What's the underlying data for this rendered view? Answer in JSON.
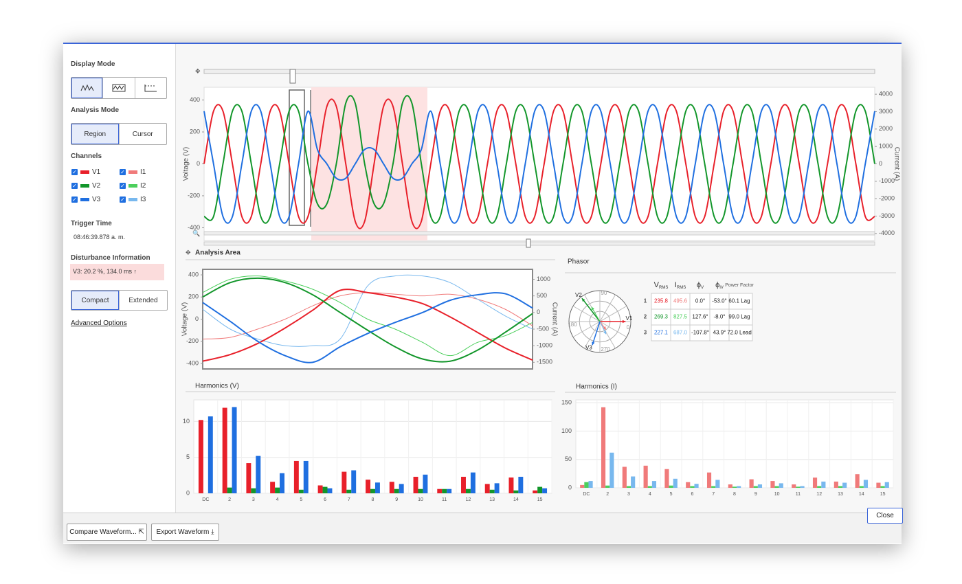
{
  "sidebar": {
    "display_mode": "Display Mode",
    "analysis_mode": "Analysis Mode",
    "region": "Region",
    "cursor": "Cursor",
    "channels_title": "Channels",
    "channels": [
      {
        "name": "V1",
        "color": "#e8202a"
      },
      {
        "name": "V2",
        "color": "#12962a"
      },
      {
        "name": "V3",
        "color": "#1f6fe0"
      },
      {
        "name": "I1",
        "color": "#f07a7a"
      },
      {
        "name": "I2",
        "color": "#4ccf5c"
      },
      {
        "name": "I3",
        "color": "#78b8ee"
      }
    ],
    "trigger_time_title": "Trigger Time",
    "trigger_time": "08:46:39.878 a. m.",
    "disturbance_title": "Disturbance Information",
    "disturbance": "V3: 20.2 %, 134.0 ms ↑",
    "compact": "Compact",
    "extended": "Extended",
    "advanced": "Advanced Options"
  },
  "footer": {
    "compare": "Compare Waveform...",
    "export": "Export Waveform",
    "close": "Close"
  },
  "chart_data": [
    {
      "type": "line",
      "y_label": "Voltage (V)",
      "y2_label": "Current (A)",
      "ylim": [
        -480,
        480
      ],
      "yticks": [
        -400,
        -200,
        0,
        200,
        400
      ],
      "y2lim": [
        -4400,
        4400
      ],
      "y2ticks": [
        -4000,
        -3000,
        -2000,
        -1000,
        0,
        1000,
        2000,
        3000,
        4000
      ],
      "grid": false,
      "series": [
        {
          "name": "V1",
          "color": "#e8202a",
          "values": [
            0,
            330,
            330,
            0,
            -330,
            -330,
            0,
            330,
            330,
            0,
            -330,
            -330,
            0,
            360,
            360,
            0,
            -360,
            -360,
            0,
            360,
            360,
            0,
            -360,
            -360,
            0,
            330,
            330,
            0,
            -330,
            -330,
            0,
            330,
            330,
            0,
            -330,
            -330,
            0,
            330,
            330,
            0,
            -330,
            -330,
            0,
            330,
            330,
            0,
            -330,
            -330,
            0,
            330,
            330,
            0,
            -330,
            -330,
            0,
            330,
            330,
            0,
            -330,
            -330,
            0,
            330,
            330,
            0,
            -330,
            -330,
            0,
            330,
            330,
            0,
            -330,
            -330
          ]
        },
        {
          "name": "V2",
          "color": "#12962a",
          "values": [
            -330,
            -330,
            0,
            330,
            330,
            0,
            -330,
            -330,
            0,
            330,
            330,
            0,
            -250,
            -250,
            0,
            380,
            380,
            0,
            -250,
            -250,
            0,
            380,
            380,
            0,
            -330,
            -330,
            0,
            330,
            330,
            0,
            -330,
            -330,
            0,
            330,
            330,
            0,
            -330,
            -330,
            0,
            330,
            330,
            0,
            -330,
            -330,
            0,
            330,
            330,
            0,
            -330,
            -330,
            0,
            330,
            330,
            0,
            -330,
            -330,
            0,
            330,
            330,
            0,
            -330,
            -330,
            0,
            330,
            330,
            0,
            -330,
            -330,
            0,
            330,
            330,
            0
          ]
        },
        {
          "name": "V3",
          "color": "#1f6fe0",
          "values": [
            330,
            0,
            -330,
            -330,
            0,
            330,
            330,
            0,
            -330,
            -330,
            0,
            330,
            90,
            0,
            -90,
            -90,
            0,
            90,
            90,
            0,
            -90,
            -90,
            0,
            90,
            330,
            0,
            -330,
            -330,
            0,
            330,
            330,
            0,
            -330,
            -330,
            0,
            330,
            330,
            0,
            -330,
            -330,
            0,
            330,
            330,
            0,
            -330,
            -330,
            0,
            330,
            330,
            0,
            -330,
            -330,
            0,
            330,
            330,
            0,
            -330,
            -330,
            0,
            330,
            330,
            0,
            -330,
            -330,
            0,
            330,
            330,
            0,
            -330,
            -330,
            0,
            330
          ]
        }
      ]
    },
    {
      "type": "line",
      "title": "Analysis Area",
      "y_label": "Voltage (V)",
      "y2_label": "Current (A)",
      "ylim": [
        -450,
        450
      ],
      "yticks": [
        -400,
        -200,
        0,
        200,
        400
      ],
      "y2lim": [
        -1700,
        1300
      ],
      "y2ticks": [
        -1500,
        -1000,
        -500,
        0,
        500,
        1000
      ],
      "grid": false,
      "series": [
        {
          "name": "I1",
          "color": "#f07a7a",
          "axis": "y2",
          "values": [
            -800,
            -750,
            -500,
            -200,
            200,
            500,
            600,
            550,
            500,
            550,
            400,
            100,
            -400
          ]
        },
        {
          "name": "I2",
          "color": "#4ccf5c",
          "axis": "y2",
          "values": [
            600,
            1000,
            1100,
            950,
            700,
            300,
            -200,
            -500,
            -900,
            -1300,
            -900,
            -700,
            -300
          ]
        },
        {
          "name": "I3",
          "color": "#78b8ee",
          "axis": "y2",
          "values": [
            100,
            -500,
            -800,
            -1000,
            -1000,
            -800,
            800,
            1100,
            1100,
            900,
            400,
            -100,
            -500
          ]
        },
        {
          "name": "V1",
          "color": "#e8202a",
          "values": [
            -380,
            -320,
            -220,
            -80,
            80,
            260,
            240,
            200,
            140,
            20,
            -120,
            -260,
            -370
          ]
        },
        {
          "name": "V2",
          "color": "#12962a",
          "values": [
            200,
            330,
            370,
            330,
            220,
            60,
            -100,
            -250,
            -360,
            -380,
            -280,
            -120,
            50
          ]
        },
        {
          "name": "V3",
          "color": "#1f6fe0",
          "values": [
            150,
            -20,
            -200,
            -330,
            -390,
            -250,
            -130,
            -30,
            60,
            170,
            220,
            230,
            100
          ]
        }
      ]
    },
    {
      "type": "bar",
      "title": "Harmonics (V)",
      "categories": [
        "DC",
        "2",
        "3",
        "4",
        "5",
        "6",
        "7",
        "8",
        "9",
        "10",
        "11",
        "12",
        "13",
        "14",
        "15"
      ],
      "ylim": [
        0,
        13
      ],
      "yticks": [
        0,
        5,
        10
      ],
      "grid": true,
      "series": [
        {
          "name": "V1",
          "color": "#e8202a",
          "values": [
            10.2,
            11.9,
            4.2,
            1.6,
            4.5,
            1.1,
            3.0,
            1.9,
            1.6,
            2.3,
            0.6,
            2.3,
            1.3,
            2.2,
            0.4
          ]
        },
        {
          "name": "V2",
          "color": "#12962a",
          "values": [
            0,
            0.8,
            0.7,
            0.8,
            0.5,
            0.9,
            0.5,
            0.6,
            0.6,
            0.6,
            0.6,
            0.6,
            0.5,
            0.4,
            0.9
          ]
        },
        {
          "name": "V3",
          "color": "#1f6fe0",
          "values": [
            10.7,
            12.0,
            5.2,
            2.8,
            4.5,
            0.7,
            3.2,
            1.5,
            1.3,
            2.6,
            0.6,
            2.9,
            1.4,
            2.3,
            0.7
          ]
        }
      ]
    },
    {
      "type": "bar",
      "title": "Harmonics (I)",
      "categories": [
        "DC",
        "2",
        "3",
        "4",
        "5",
        "6",
        "7",
        "8",
        "9",
        "10",
        "11",
        "12",
        "13",
        "14",
        "15"
      ],
      "ylim": [
        0,
        155
      ],
      "yticks": [
        0,
        50,
        100,
        150
      ],
      "grid": true,
      "series": [
        {
          "name": "I1",
          "color": "#f07a7a",
          "values": [
            5,
            142,
            37,
            39,
            33,
            10,
            27,
            6,
            15,
            12,
            6,
            18,
            11,
            24,
            9
          ]
        },
        {
          "name": "I2",
          "color": "#4ccf5c",
          "values": [
            10,
            4,
            3,
            3,
            4,
            3,
            3,
            2,
            3,
            3,
            2,
            3,
            3,
            3,
            3
          ]
        },
        {
          "name": "I3",
          "color": "#78b8ee",
          "values": [
            12,
            62,
            20,
            12,
            16,
            7,
            14,
            3,
            6,
            8,
            3,
            11,
            9,
            14,
            10
          ]
        }
      ]
    }
  ],
  "phasor": {
    "title": "Phasor",
    "ring_labels": {
      "top": "90",
      "right": "0",
      "left": "180",
      "bottom": "270"
    },
    "vector_labels": [
      "V1",
      "V2",
      "V3"
    ],
    "headers": [
      {
        "main": "V",
        "sub": "RMS"
      },
      {
        "main": "I",
        "sub": "RMS"
      },
      {
        "main": "ϕ",
        "sub": "V"
      },
      {
        "main": "ϕ",
        "sub": "IV"
      },
      {
        "main": "Power Factor"
      }
    ],
    "rows": [
      {
        "index": "1",
        "v_rms": 235.8,
        "i_rms": 495.6,
        "phi_v": {
          "value": 0,
          "label": "0.0°"
        },
        "phi_iv": {
          "value": -53,
          "label": "-53.0°"
        },
        "pf": "60.1 Lag"
      },
      {
        "index": "2",
        "v_rms": 269.3,
        "i_rms": 827.5,
        "phi_v": {
          "value": 127.6,
          "label": "127.6°"
        },
        "phi_iv": {
          "value": -8,
          "label": "-8.0°"
        },
        "pf": "99.0 Lag"
      },
      {
        "index": "3",
        "v_rms": 227.1,
        "i_rms": {
          "value": 687,
          "label": "687.0"
        },
        "phi_v": {
          "value": -107.8,
          "label": "-107.8°"
        },
        "phi_iv": {
          "value": 43.9,
          "label": "43.9°"
        },
        "pf": "72.0 Lead"
      }
    ]
  }
}
